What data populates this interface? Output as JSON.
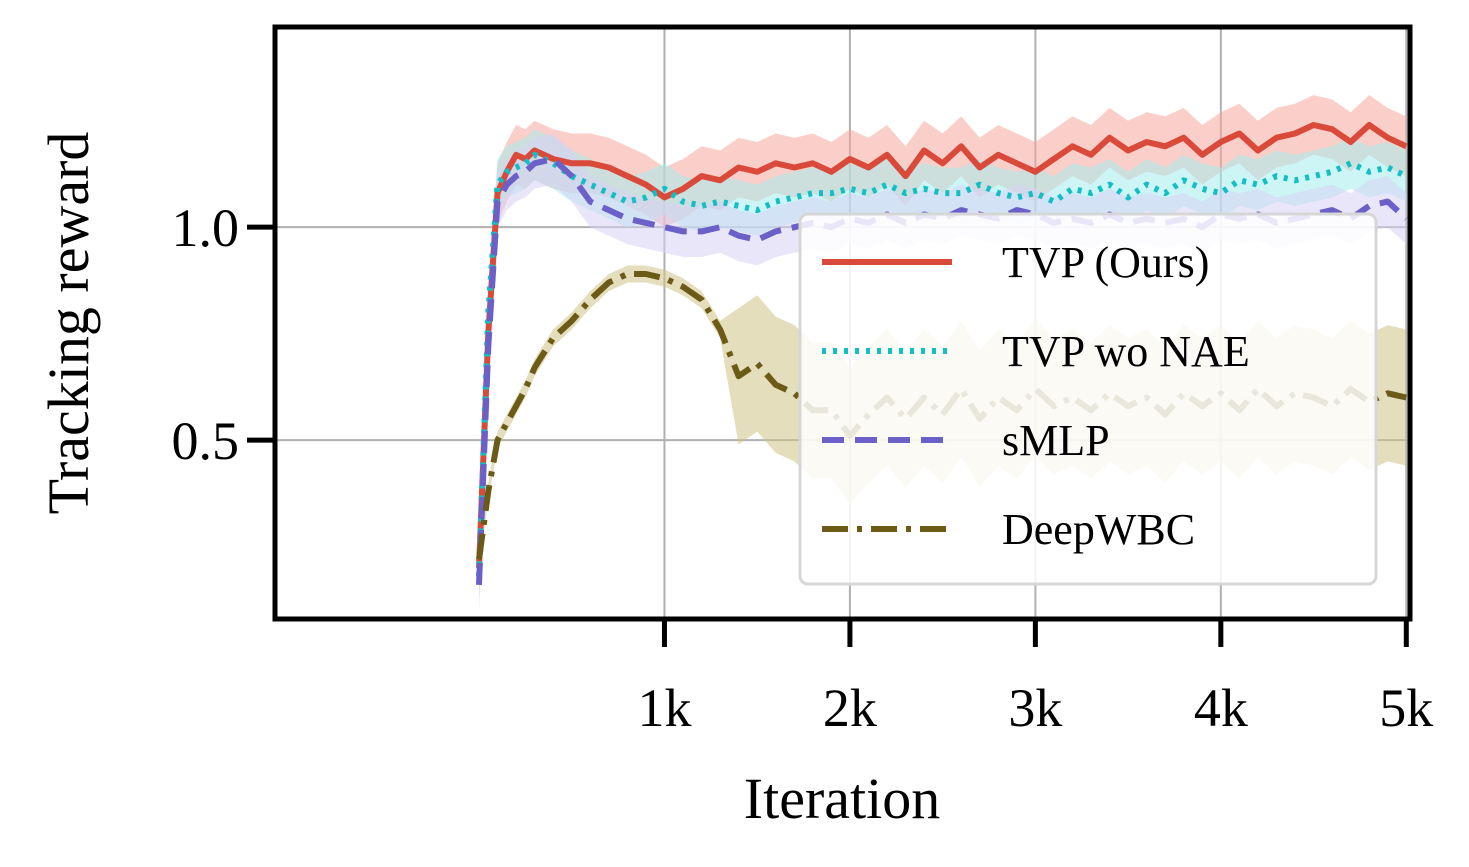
{
  "chart_data": {
    "type": "line",
    "title": "",
    "xlabel": "Iteration",
    "ylabel": "Tracking reward",
    "xlim": [
      -1100,
      5020
    ],
    "ylim": [
      0.08,
      1.47
    ],
    "grid": true,
    "legend_position": "lower-right",
    "x_ticks": [
      {
        "value": 1000,
        "label": "1k"
      },
      {
        "value": 2000,
        "label": "2k"
      },
      {
        "value": 3000,
        "label": "3k"
      },
      {
        "value": 4000,
        "label": "4k"
      },
      {
        "value": 5000,
        "label": "5k"
      }
    ],
    "y_ticks": [
      {
        "value": 0.5,
        "label": "0.5"
      },
      {
        "value": 1.0,
        "label": "1.0"
      }
    ],
    "x": [
      0,
      50,
      100,
      150,
      200,
      250,
      300,
      400,
      500,
      600,
      700,
      800,
      900,
      1000,
      1100,
      1200,
      1300,
      1400,
      1500,
      1600,
      1700,
      1800,
      1900,
      2000,
      2100,
      2200,
      2300,
      2400,
      2500,
      2600,
      2700,
      2800,
      2900,
      3000,
      3100,
      3200,
      3300,
      3400,
      3500,
      3600,
      3700,
      3800,
      3900,
      4000,
      4100,
      4200,
      4300,
      4400,
      4500,
      4600,
      4700,
      4800,
      4900,
      5000
    ],
    "series": [
      {
        "name": "TVP (Ours)",
        "color": "#d94a3a",
        "band_color": "#f8a79c",
        "dash": "solid",
        "values": [
          0.2,
          0.75,
          1.08,
          1.13,
          1.17,
          1.16,
          1.18,
          1.16,
          1.15,
          1.15,
          1.14,
          1.12,
          1.1,
          1.07,
          1.09,
          1.12,
          1.11,
          1.14,
          1.13,
          1.15,
          1.14,
          1.15,
          1.13,
          1.16,
          1.14,
          1.17,
          1.12,
          1.18,
          1.15,
          1.19,
          1.14,
          1.17,
          1.15,
          1.13,
          1.16,
          1.19,
          1.17,
          1.21,
          1.18,
          1.2,
          1.19,
          1.21,
          1.17,
          1.2,
          1.22,
          1.18,
          1.21,
          1.22,
          1.24,
          1.23,
          1.2,
          1.24,
          1.21,
          1.19
        ],
        "band": 0.07
      },
      {
        "name": "TVP wo NAE",
        "color": "#12bfc6",
        "band_color": "#a6ecec",
        "dash": "dotted",
        "values": [
          0.18,
          0.8,
          1.1,
          1.13,
          1.14,
          1.15,
          1.17,
          1.15,
          1.12,
          1.1,
          1.08,
          1.06,
          1.07,
          1.09,
          1.06,
          1.05,
          1.06,
          1.05,
          1.04,
          1.06,
          1.07,
          1.08,
          1.08,
          1.09,
          1.08,
          1.1,
          1.08,
          1.09,
          1.08,
          1.08,
          1.1,
          1.08,
          1.07,
          1.08,
          1.06,
          1.09,
          1.08,
          1.1,
          1.07,
          1.1,
          1.08,
          1.11,
          1.09,
          1.08,
          1.11,
          1.1,
          1.12,
          1.11,
          1.12,
          1.13,
          1.15,
          1.13,
          1.14,
          1.12
        ],
        "band": 0.06
      },
      {
        "name": "sMLP",
        "color": "#6b5fc8",
        "band_color": "#d7d2f4",
        "dash": "dashed",
        "values": [
          0.16,
          0.72,
          1.06,
          1.1,
          1.12,
          1.13,
          1.15,
          1.16,
          1.12,
          1.06,
          1.04,
          1.02,
          1.01,
          1.0,
          0.99,
          0.99,
          1.0,
          0.98,
          0.97,
          0.99,
          1.0,
          1.01,
          1.0,
          1.02,
          1.01,
          1.03,
          1.01,
          1.03,
          1.02,
          1.04,
          1.03,
          1.02,
          1.04,
          1.03,
          1.01,
          1.02,
          1.01,
          1.03,
          1.01,
          1.02,
          1.01,
          1.02,
          1.0,
          1.03,
          1.02,
          1.03,
          1.01,
          1.02,
          1.03,
          1.04,
          1.02,
          1.05,
          1.06,
          1.02
        ],
        "band": 0.06
      },
      {
        "name": "DeepWBC",
        "color": "#6b5b17",
        "band_color": "#cdc387",
        "dash": "dashdot",
        "values": [
          0.22,
          0.38,
          0.5,
          0.54,
          0.58,
          0.62,
          0.67,
          0.74,
          0.78,
          0.83,
          0.87,
          0.89,
          0.89,
          0.88,
          0.86,
          0.83,
          0.76,
          0.65,
          0.68,
          0.63,
          0.61,
          0.57,
          0.57,
          0.51,
          0.56,
          0.6,
          0.55,
          0.6,
          0.56,
          0.62,
          0.55,
          0.6,
          0.57,
          0.62,
          0.58,
          0.6,
          0.57,
          0.61,
          0.58,
          0.6,
          0.56,
          0.61,
          0.58,
          0.61,
          0.57,
          0.62,
          0.58,
          0.61,
          0.6,
          0.58,
          0.62,
          0.59,
          0.61,
          0.6
        ],
        "band": 0.02,
        "band_growth_after": 1300,
        "band_large": 0.16
      }
    ]
  }
}
